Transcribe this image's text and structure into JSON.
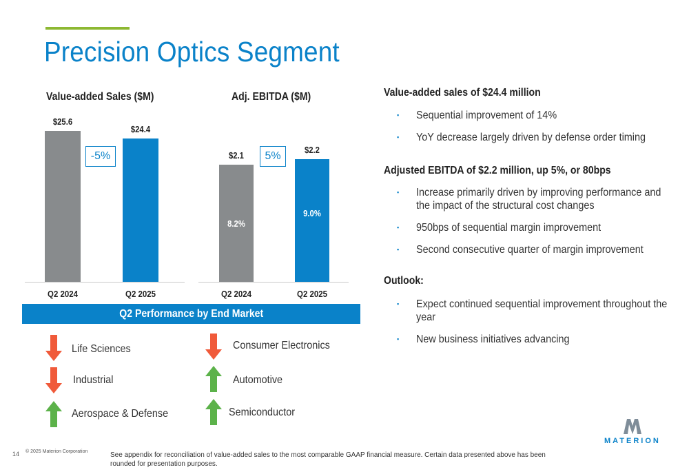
{
  "title": "Precision Optics Segment",
  "colors": {
    "accent_green": "#8db832",
    "brand_blue": "#0a82c9",
    "gray_bar": "#888b8d",
    "down_arrow": "#f05a3a",
    "up_arrow": "#5cb24a"
  },
  "chart_data": [
    {
      "type": "bar",
      "title": "Value-added Sales ($M)",
      "categories": [
        "Q2 2024",
        "Q2 2025"
      ],
      "values": [
        25.6,
        24.4
      ],
      "value_labels": [
        "$25.6",
        "$24.4"
      ],
      "change_label": "-5%",
      "ylim": [
        0,
        26
      ]
    },
    {
      "type": "bar",
      "title": "Adj. EBITDA ($M)",
      "categories": [
        "Q2 2024",
        "Q2 2025"
      ],
      "values": [
        2.1,
        2.2
      ],
      "value_labels": [
        "$2.1",
        "$2.2"
      ],
      "margin_labels": [
        "8.2%",
        "9.0%"
      ],
      "change_label": "5%",
      "ylim": [
        0,
        2.75
      ]
    }
  ],
  "end_market": {
    "header": "Q2 Performance by End Market",
    "items": [
      {
        "label": "Life Sciences",
        "trend": "down"
      },
      {
        "label": "Consumer Electronics",
        "trend": "down"
      },
      {
        "label": "Industrial",
        "trend": "down"
      },
      {
        "label": "Automotive",
        "trend": "up"
      },
      {
        "label": "Aerospace & Defense",
        "trend": "up"
      },
      {
        "label": "Semiconductor",
        "trend": "up"
      }
    ]
  },
  "commentary": {
    "sales_heading": "Value-added sales of $24.4 million",
    "sales_bullets": [
      "Sequential improvement of 14%",
      "YoY decrease largely driven by defense order timing"
    ],
    "ebitda_heading": "Adjusted EBITDA of $2.2 million, up 5%, or 80bps",
    "ebitda_bullets": [
      "Increase primarily driven by improving performance and the impact of the structural cost changes",
      "950bps of sequential margin improvement",
      "Second consecutive quarter of margin improvement"
    ],
    "outlook_heading": "Outlook:",
    "outlook_bullets": [
      "Expect continued sequential improvement throughout the year",
      "New business initiatives advancing"
    ]
  },
  "footer": {
    "page_number": "14",
    "copyright": "© 2025 Materion Corporation",
    "footnote": "See appendix for reconciliation of value-added sales to the most comparable GAAP financial measure. Certain data presented above has been rounded for presentation purposes.",
    "logo_text": "MATERION"
  }
}
